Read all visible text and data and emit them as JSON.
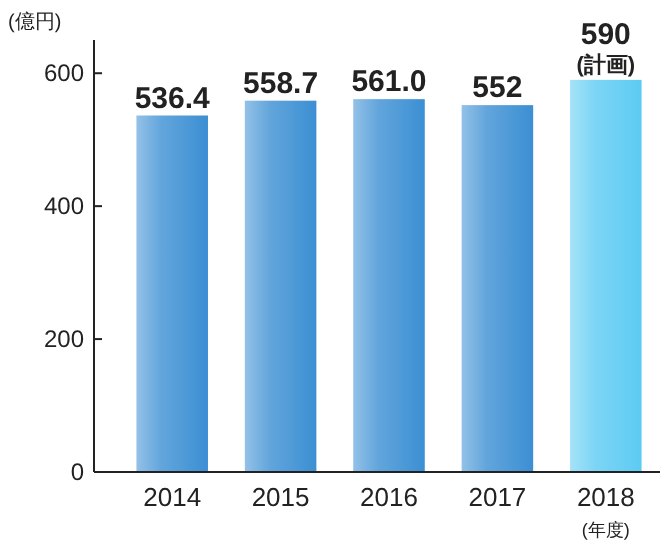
{
  "chart_data": {
    "type": "bar",
    "ylabel": "(億円)",
    "xlabel": "(年度)",
    "categories": [
      "2014",
      "2015",
      "2016",
      "2017",
      "2018"
    ],
    "values": [
      536.4,
      558.7,
      561.0,
      552,
      590
    ],
    "colors": [
      "#3b8fd3",
      "#3b8fd3",
      "#3b8fd3",
      "#3b8fd3",
      "#5ccbf2"
    ],
    "value_labels": [
      "536.4",
      "558.7",
      "561.0",
      "552",
      "590\n(計画)"
    ],
    "ylim": [
      0,
      650
    ],
    "yticks": [
      0,
      200,
      400,
      600
    ],
    "grid": false
  }
}
